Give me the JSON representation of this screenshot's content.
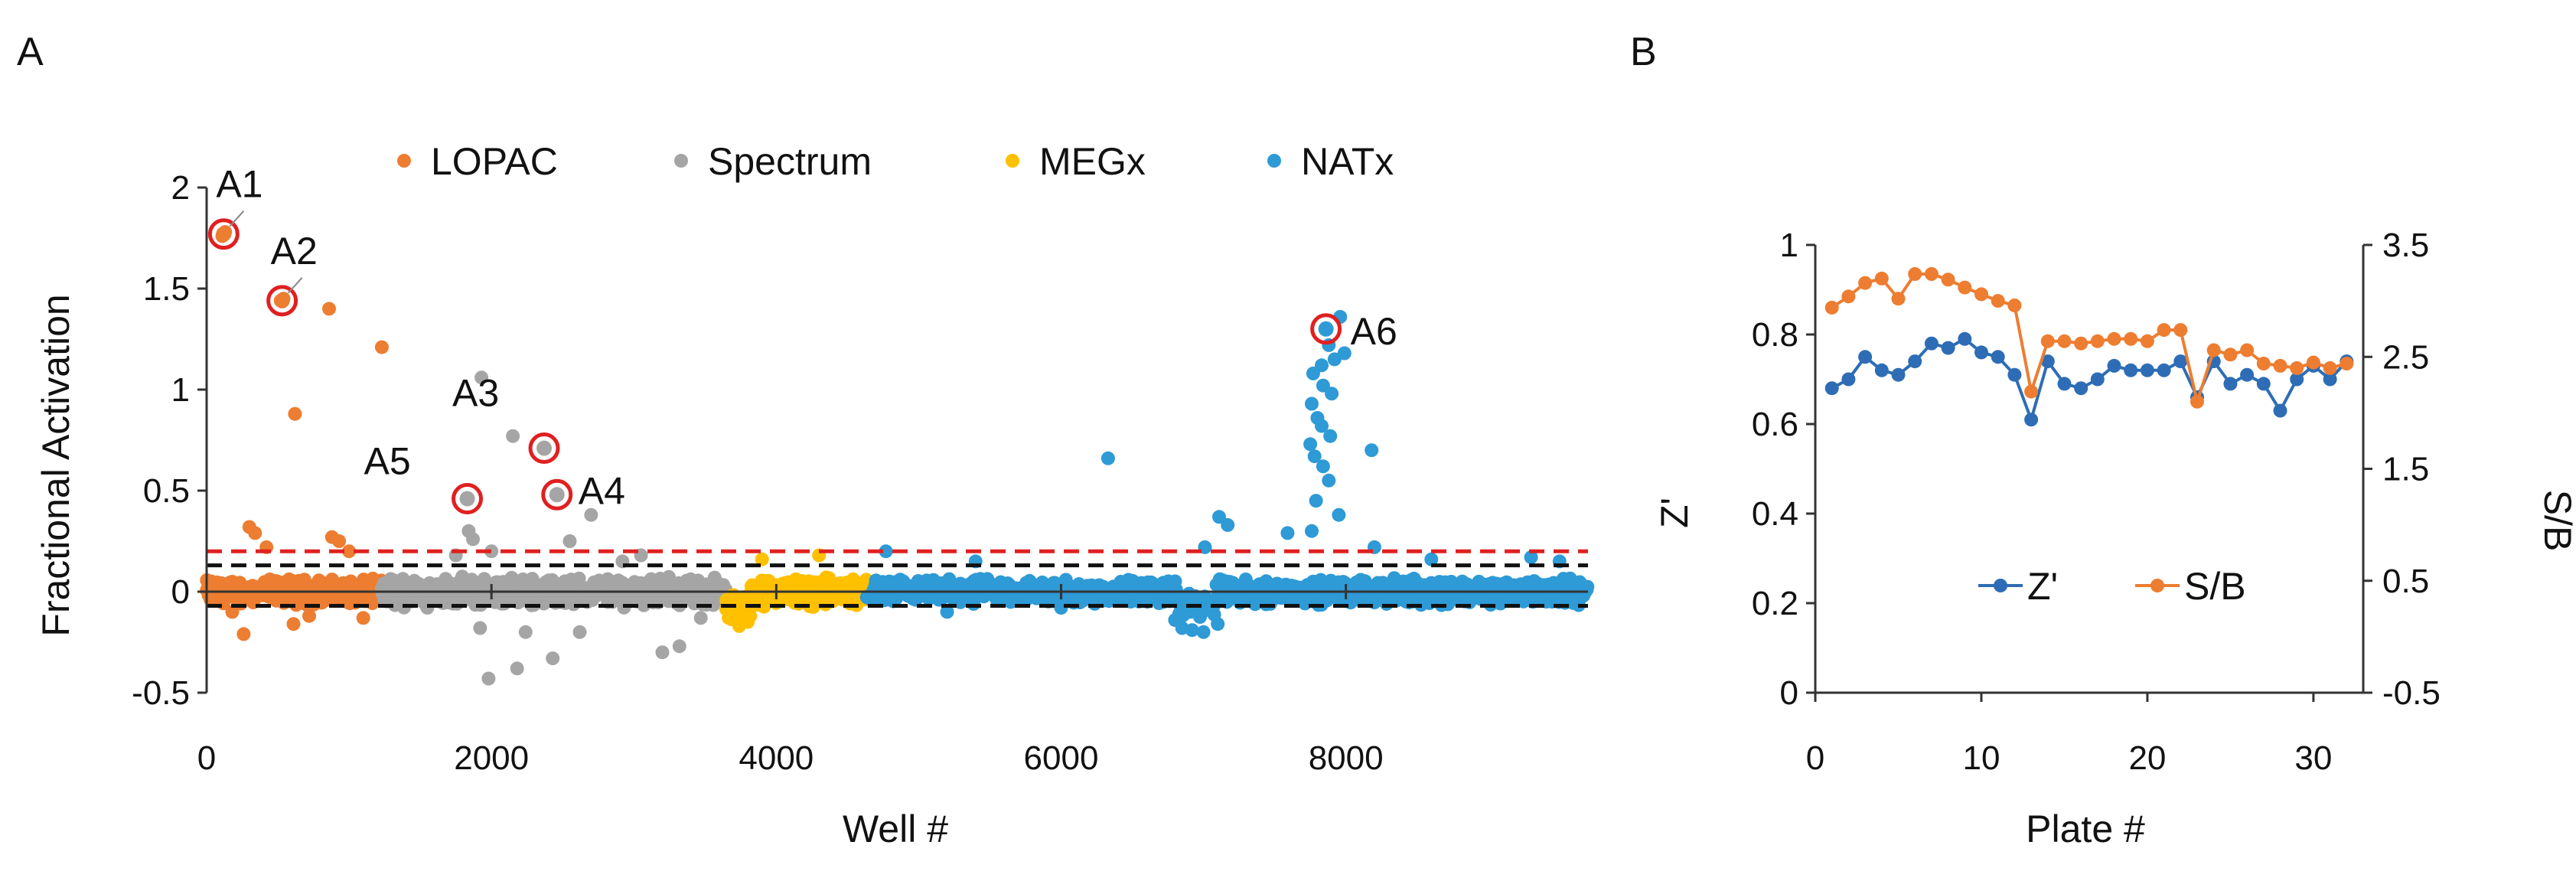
{
  "panels": {
    "a": "A",
    "b": "B"
  },
  "chart_data": [
    {
      "type": "scatter",
      "panel": "A",
      "xlabel": "Well #",
      "ylabel": "Fractional Activation",
      "xlim": [
        0,
        9700
      ],
      "ylim": [
        -0.5,
        2
      ],
      "x_ticks": [
        0,
        2000,
        4000,
        6000,
        8000
      ],
      "x_tick_labels": [
        "0",
        "2000",
        "4000",
        "6000",
        "8000"
      ],
      "y_ticks": [
        -0.5,
        0,
        0.5,
        1,
        1.5,
        2
      ],
      "y_tick_labels": [
        "-0.5",
        "0",
        "0.5",
        "1",
        "1.5",
        "2"
      ],
      "legend": "top",
      "series": [
        {
          "name": "LOPAC",
          "color": "#ED7D31",
          "range": [
            0,
            1230
          ],
          "base_spread": 0.05,
          "outliers": [
            [
              110,
              1.76
            ],
            [
              130,
              1.78
            ],
            [
              520,
              1.44
            ],
            [
              540,
              1.45
            ],
            [
              860,
              1.4
            ],
            [
              1230,
              1.21
            ],
            [
              620,
              0.88
            ],
            [
              300,
              0.32
            ],
            [
              340,
              0.29
            ],
            [
              420,
              0.22
            ],
            [
              880,
              0.27
            ],
            [
              930,
              0.25
            ],
            [
              260,
              -0.21
            ],
            [
              610,
              -0.16
            ],
            [
              720,
              -0.12
            ],
            [
              1100,
              -0.13
            ],
            [
              180,
              -0.1
            ],
            [
              1000,
              0.2
            ]
          ]
        },
        {
          "name": "Spectrum",
          "color": "#A5A5A5",
          "range": [
            1230,
            3650
          ],
          "base_spread": 0.06,
          "outliers": [
            [
              1830,
              0.46
            ],
            [
              1840,
              0.3
            ],
            [
              1930,
              1.06
            ],
            [
              2150,
              0.77
            ],
            [
              2370,
              0.71
            ],
            [
              2460,
              0.48
            ],
            [
              2700,
              0.38
            ],
            [
              1870,
              0.26
            ],
            [
              2550,
              0.25
            ],
            [
              2000,
              0.2
            ],
            [
              1920,
              -0.18
            ],
            [
              1980,
              -0.43
            ],
            [
              2180,
              -0.38
            ],
            [
              2430,
              -0.33
            ],
            [
              2620,
              -0.2
            ],
            [
              3200,
              -0.3
            ],
            [
              3320,
              -0.27
            ],
            [
              3470,
              -0.13
            ],
            [
              2920,
              0.15
            ],
            [
              3050,
              0.18
            ],
            [
              2240,
              -0.2
            ],
            [
              1750,
              0.18
            ]
          ]
        },
        {
          "name": "MEGx",
          "color": "#FFC000",
          "range": [
            3650,
            4640
          ],
          "base_spread": 0.06,
          "outliers": [
            [
              3740,
              -0.17
            ],
            [
              3800,
              -0.15
            ],
            [
              3900,
              0.16
            ],
            [
              4300,
              0.18
            ]
          ]
        },
        {
          "name": "NATx",
          "color": "#2E9AD6",
          "range": [
            4640,
            9700
          ],
          "base_spread": 0.05,
          "outliers": [
            [
              7860,
              1.3
            ],
            [
              7960,
              1.36
            ],
            [
              7880,
              1.22
            ],
            [
              7830,
              1.12
            ],
            [
              7920,
              1.15
            ],
            [
              7990,
              1.18
            ],
            [
              7770,
              1.08
            ],
            [
              7840,
              1.02
            ],
            [
              7900,
              0.98
            ],
            [
              7760,
              0.93
            ],
            [
              7800,
              0.86
            ],
            [
              7830,
              0.82
            ],
            [
              7890,
              0.77
            ],
            [
              7750,
              0.73
            ],
            [
              8180,
              0.7
            ],
            [
              7780,
              0.67
            ],
            [
              7840,
              0.62
            ],
            [
              7880,
              0.55
            ],
            [
              7790,
              0.45
            ],
            [
              7950,
              0.38
            ],
            [
              6330,
              0.66
            ],
            [
              7110,
              0.37
            ],
            [
              7170,
              0.33
            ],
            [
              7590,
              0.29
            ],
            [
              7010,
              0.22
            ],
            [
              7760,
              0.3
            ],
            [
              8200,
              0.22
            ],
            [
              4770,
              0.2
            ],
            [
              5400,
              0.15
            ],
            [
              8600,
              0.16
            ],
            [
              9300,
              0.17
            ],
            [
              9500,
              0.15
            ],
            [
              6850,
              -0.18
            ],
            [
              6920,
              -0.19
            ],
            [
              7000,
              -0.2
            ],
            [
              7100,
              -0.16
            ],
            [
              6800,
              -0.14
            ],
            [
              5200,
              -0.1
            ],
            [
              6000,
              -0.08
            ]
          ]
        }
      ],
      "threshold_lines": [
        {
          "y": 0.2,
          "color": "#E02020"
        },
        {
          "y": 0.13,
          "color": "#111111"
        },
        {
          "y": -0.07,
          "color": "#111111"
        }
      ],
      "highlighted": [
        {
          "label": "A1",
          "x": 120,
          "y": 1.77,
          "color": "#ED7D31"
        },
        {
          "label": "A2",
          "x": 530,
          "y": 1.44,
          "color": "#ED7D31"
        },
        {
          "label": "A3",
          "x": 2370,
          "y": 0.71,
          "color": "#A5A5A5"
        },
        {
          "label": "A4",
          "x": 2460,
          "y": 0.48,
          "color": "#A5A5A5"
        },
        {
          "label": "A5",
          "x": 1830,
          "y": 0.46,
          "color": "#A5A5A5"
        },
        {
          "label": "A6",
          "x": 7860,
          "y": 1.3,
          "color": "#2E9AD6"
        }
      ]
    },
    {
      "type": "line",
      "panel": "B",
      "xlabel": "Plate #",
      "ylabel": "Z'",
      "y2label": "S/B",
      "xlim": [
        0,
        33
      ],
      "ylim": [
        0,
        1
      ],
      "y2lim": [
        -0.5,
        3.5
      ],
      "x_ticks": [
        0,
        10,
        20,
        30
      ],
      "x_tick_labels": [
        "0",
        "10",
        "20",
        "30"
      ],
      "y_ticks": [
        0,
        0.2,
        0.4,
        0.6,
        0.8,
        1
      ],
      "y_tick_labels": [
        "0",
        "0.2",
        "0.4",
        "0.6",
        "0.8",
        "1"
      ],
      "y2_ticks": [
        -0.5,
        0.5,
        1.5,
        2.5,
        3.5
      ],
      "y2_tick_labels": [
        "-0.5",
        "0.5",
        "1.5",
        "2.5",
        "3.5"
      ],
      "legend": "bottom-right",
      "x": [
        1,
        2,
        3,
        4,
        5,
        6,
        7,
        8,
        9,
        10,
        11,
        12,
        13,
        14,
        15,
        16,
        17,
        18,
        19,
        20,
        21,
        22,
        23,
        24,
        25,
        26,
        27,
        28,
        29,
        30,
        31,
        32
      ],
      "series": [
        {
          "name": "Z'",
          "axis": "left",
          "color": "#2E6DB5",
          "values": [
            0.68,
            0.7,
            0.75,
            0.72,
            0.71,
            0.74,
            0.78,
            0.77,
            0.79,
            0.76,
            0.75,
            0.71,
            0.61,
            0.74,
            0.69,
            0.68,
            0.7,
            0.73,
            0.72,
            0.72,
            0.72,
            0.74,
            0.66,
            0.74,
            0.69,
            0.71,
            0.69,
            0.63,
            0.7,
            0.73,
            0.7,
            0.74
          ]
        },
        {
          "name": "S/B",
          "axis": "right",
          "color": "#ED7D31",
          "values": [
            2.94,
            3.04,
            3.16,
            3.2,
            3.02,
            3.24,
            3.24,
            3.19,
            3.12,
            3.06,
            3.0,
            2.96,
            2.19,
            2.64,
            2.64,
            2.62,
            2.64,
            2.66,
            2.66,
            2.64,
            2.74,
            2.74,
            2.1,
            2.56,
            2.52,
            2.56,
            2.44,
            2.42,
            2.4,
            2.45,
            2.4,
            2.44
          ]
        }
      ]
    }
  ]
}
